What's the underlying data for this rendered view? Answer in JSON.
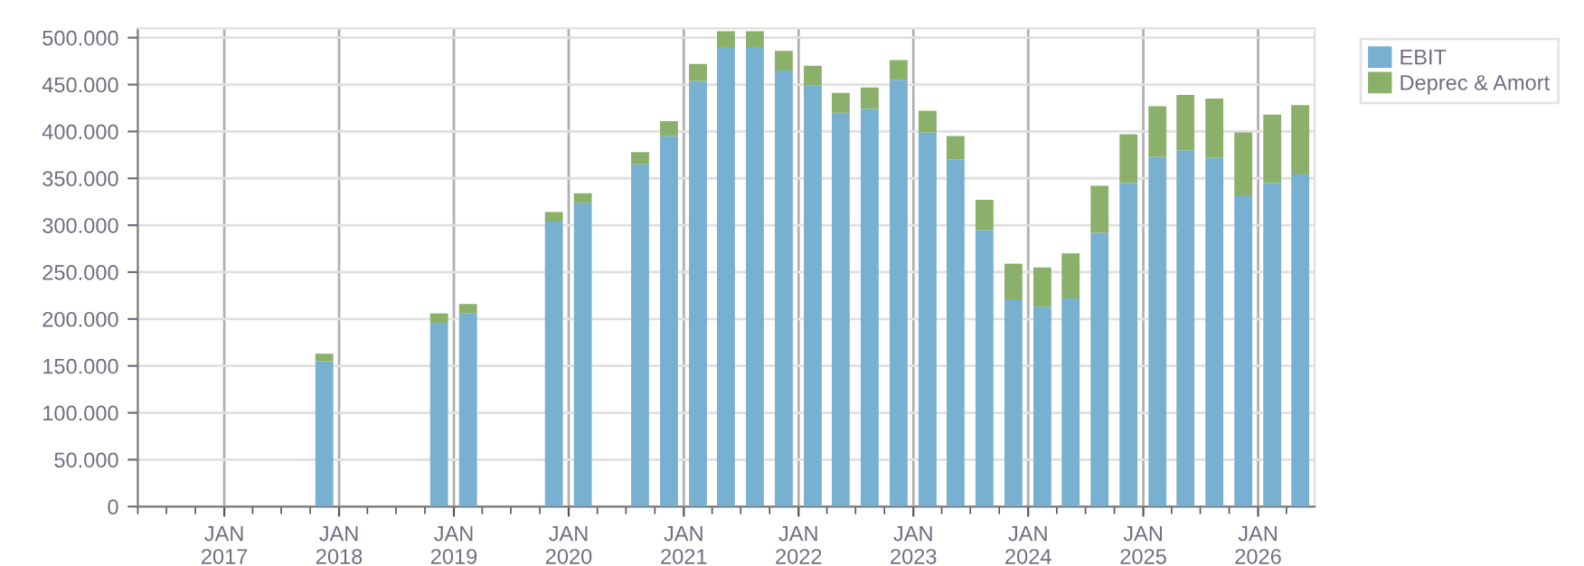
{
  "chart_data": {
    "type": "bar",
    "stacked": true,
    "x": [
      "2017-11-15",
      "2018-11-15",
      "2019-02-15",
      "2019-11-15",
      "2020-02-15",
      "2020-08-15",
      "2020-11-15",
      "2021-02-15",
      "2021-05-15",
      "2021-08-15",
      "2021-11-15",
      "2022-02-15",
      "2022-05-15",
      "2022-08-15",
      "2022-11-15",
      "2023-02-15",
      "2023-05-15",
      "2023-08-15",
      "2023-11-15",
      "2024-02-15",
      "2024-05-15",
      "2024-08-15",
      "2024-11-15",
      "2025-02-15",
      "2025-05-15",
      "2025-08-15",
      "2025-11-15",
      "2026-02-15",
      "2026-05-15"
    ],
    "series": [
      {
        "name": "EBIT",
        "color": "#78b0d2",
        "values": [
          155000,
          196000,
          206000,
          304000,
          324000,
          365000,
          395000,
          454000,
          490000,
          490000,
          465000,
          449000,
          420000,
          424000,
          455000,
          399000,
          370000,
          295000,
          221000,
          213000,
          222000,
          292000,
          345000,
          373000,
          380000,
          372000,
          331000,
          345000,
          354000
        ]
      },
      {
        "name": "Deprec & Amort",
        "color": "#8ab06a",
        "values": [
          8000,
          10000,
          10000,
          10000,
          10000,
          13000,
          16000,
          18000,
          17000,
          17000,
          21000,
          21000,
          21000,
          23000,
          21000,
          23000,
          25000,
          32000,
          38000,
          42000,
          48000,
          50000,
          52000,
          54000,
          59000,
          63000,
          68000,
          73000,
          74000
        ]
      }
    ],
    "xlim": [
      "2016-04-01",
      "2026-06-30"
    ],
    "xticks": [
      {
        "value": "2017-01-01",
        "label": "JAN\n2017"
      },
      {
        "value": "2018-01-01",
        "label": "JAN\n2018"
      },
      {
        "value": "2019-01-01",
        "label": "JAN\n2019"
      },
      {
        "value": "2020-01-01",
        "label": "JAN\n2020"
      },
      {
        "value": "2021-01-01",
        "label": "JAN\n2021"
      },
      {
        "value": "2022-01-01",
        "label": "JAN\n2022"
      },
      {
        "value": "2023-01-01",
        "label": "JAN\n2023"
      },
      {
        "value": "2024-01-01",
        "label": "JAN\n2024"
      },
      {
        "value": "2025-01-01",
        "label": "JAN\n2025"
      },
      {
        "value": "2026-01-01",
        "label": "JAN\n2026"
      }
    ],
    "ylim": [
      0,
      510000
    ],
    "yticks": [
      0,
      {
        "value": 50000,
        "label": "50.000"
      },
      {
        "value": 100000,
        "label": "100.000"
      },
      {
        "value": 150000,
        "label": "150.000"
      },
      {
        "value": 200000,
        "label": "200.000"
      },
      {
        "value": 250000,
        "label": "250.000"
      },
      {
        "value": 300000,
        "label": "300.000"
      },
      {
        "value": 350000,
        "label": "350.000"
      },
      {
        "value": 400000,
        "label": "400.000"
      },
      {
        "value": 450000,
        "label": "450.000"
      },
      {
        "value": 500000,
        "label": "500.000"
      }
    ],
    "grid": true,
    "legend": "top right"
  }
}
